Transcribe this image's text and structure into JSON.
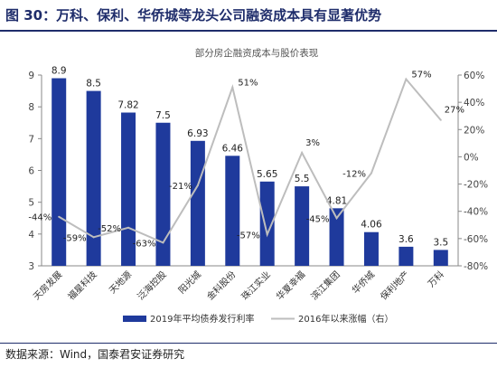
{
  "page": {
    "figure_title": "图 30：万科、保利、华侨城等龙头公司融资成本具有显著优势",
    "source_note": "数据来源：Wind，国泰君安证券研究"
  },
  "colors": {
    "title": "#1f2d6b",
    "bar": "#1f3a9c",
    "line": "#bdbdbd",
    "axis": "#888888"
  },
  "chart_data": {
    "type": "bar+line",
    "title": "部分房企融资成本与股价表现",
    "categories": [
      "天房发展",
      "福星科技",
      "天地源",
      "泛海控股",
      "阳光城",
      "金科股份",
      "珠江实业",
      "华夏幸福",
      "滨江集团",
      "华侨城",
      "保利地产",
      "万科"
    ],
    "series": [
      {
        "name": "2019年平均债券发行利率",
        "type": "bar",
        "axis": "left",
        "values": [
          8.9,
          8.5,
          7.82,
          7.5,
          6.93,
          6.46,
          5.65,
          5.5,
          4.81,
          4.06,
          3.6,
          3.5
        ],
        "labels": [
          "8.9",
          "8.5",
          "7.82",
          "7.5",
          "6.93",
          "6.46",
          "5.65",
          "5.5",
          "4.81",
          "4.06",
          "3.6",
          "3.5"
        ]
      },
      {
        "name": "2016年以来涨幅（右）",
        "type": "line",
        "axis": "right",
        "values": [
          -44,
          -59,
          -52,
          -63,
          -21,
          51,
          -57,
          3,
          -45,
          -12,
          57,
          27
        ],
        "labels": [
          "-44%",
          "-59%",
          "-52%",
          "-63%",
          "-21%",
          "51%",
          "-57%",
          "3%",
          "-45%",
          "-12%",
          "57%",
          "27%"
        ]
      }
    ],
    "y_left": {
      "min": 3,
      "max": 9,
      "ticks": [
        "3",
        "4",
        "5",
        "6",
        "7",
        "8",
        "9"
      ]
    },
    "y_right": {
      "min": -80,
      "max": 60,
      "ticks": [
        "-80%",
        "-60%",
        "-40%",
        "-20%",
        "0%",
        "20%",
        "40%",
        "60%"
      ]
    },
    "legend_position": "bottom",
    "grid": false
  }
}
